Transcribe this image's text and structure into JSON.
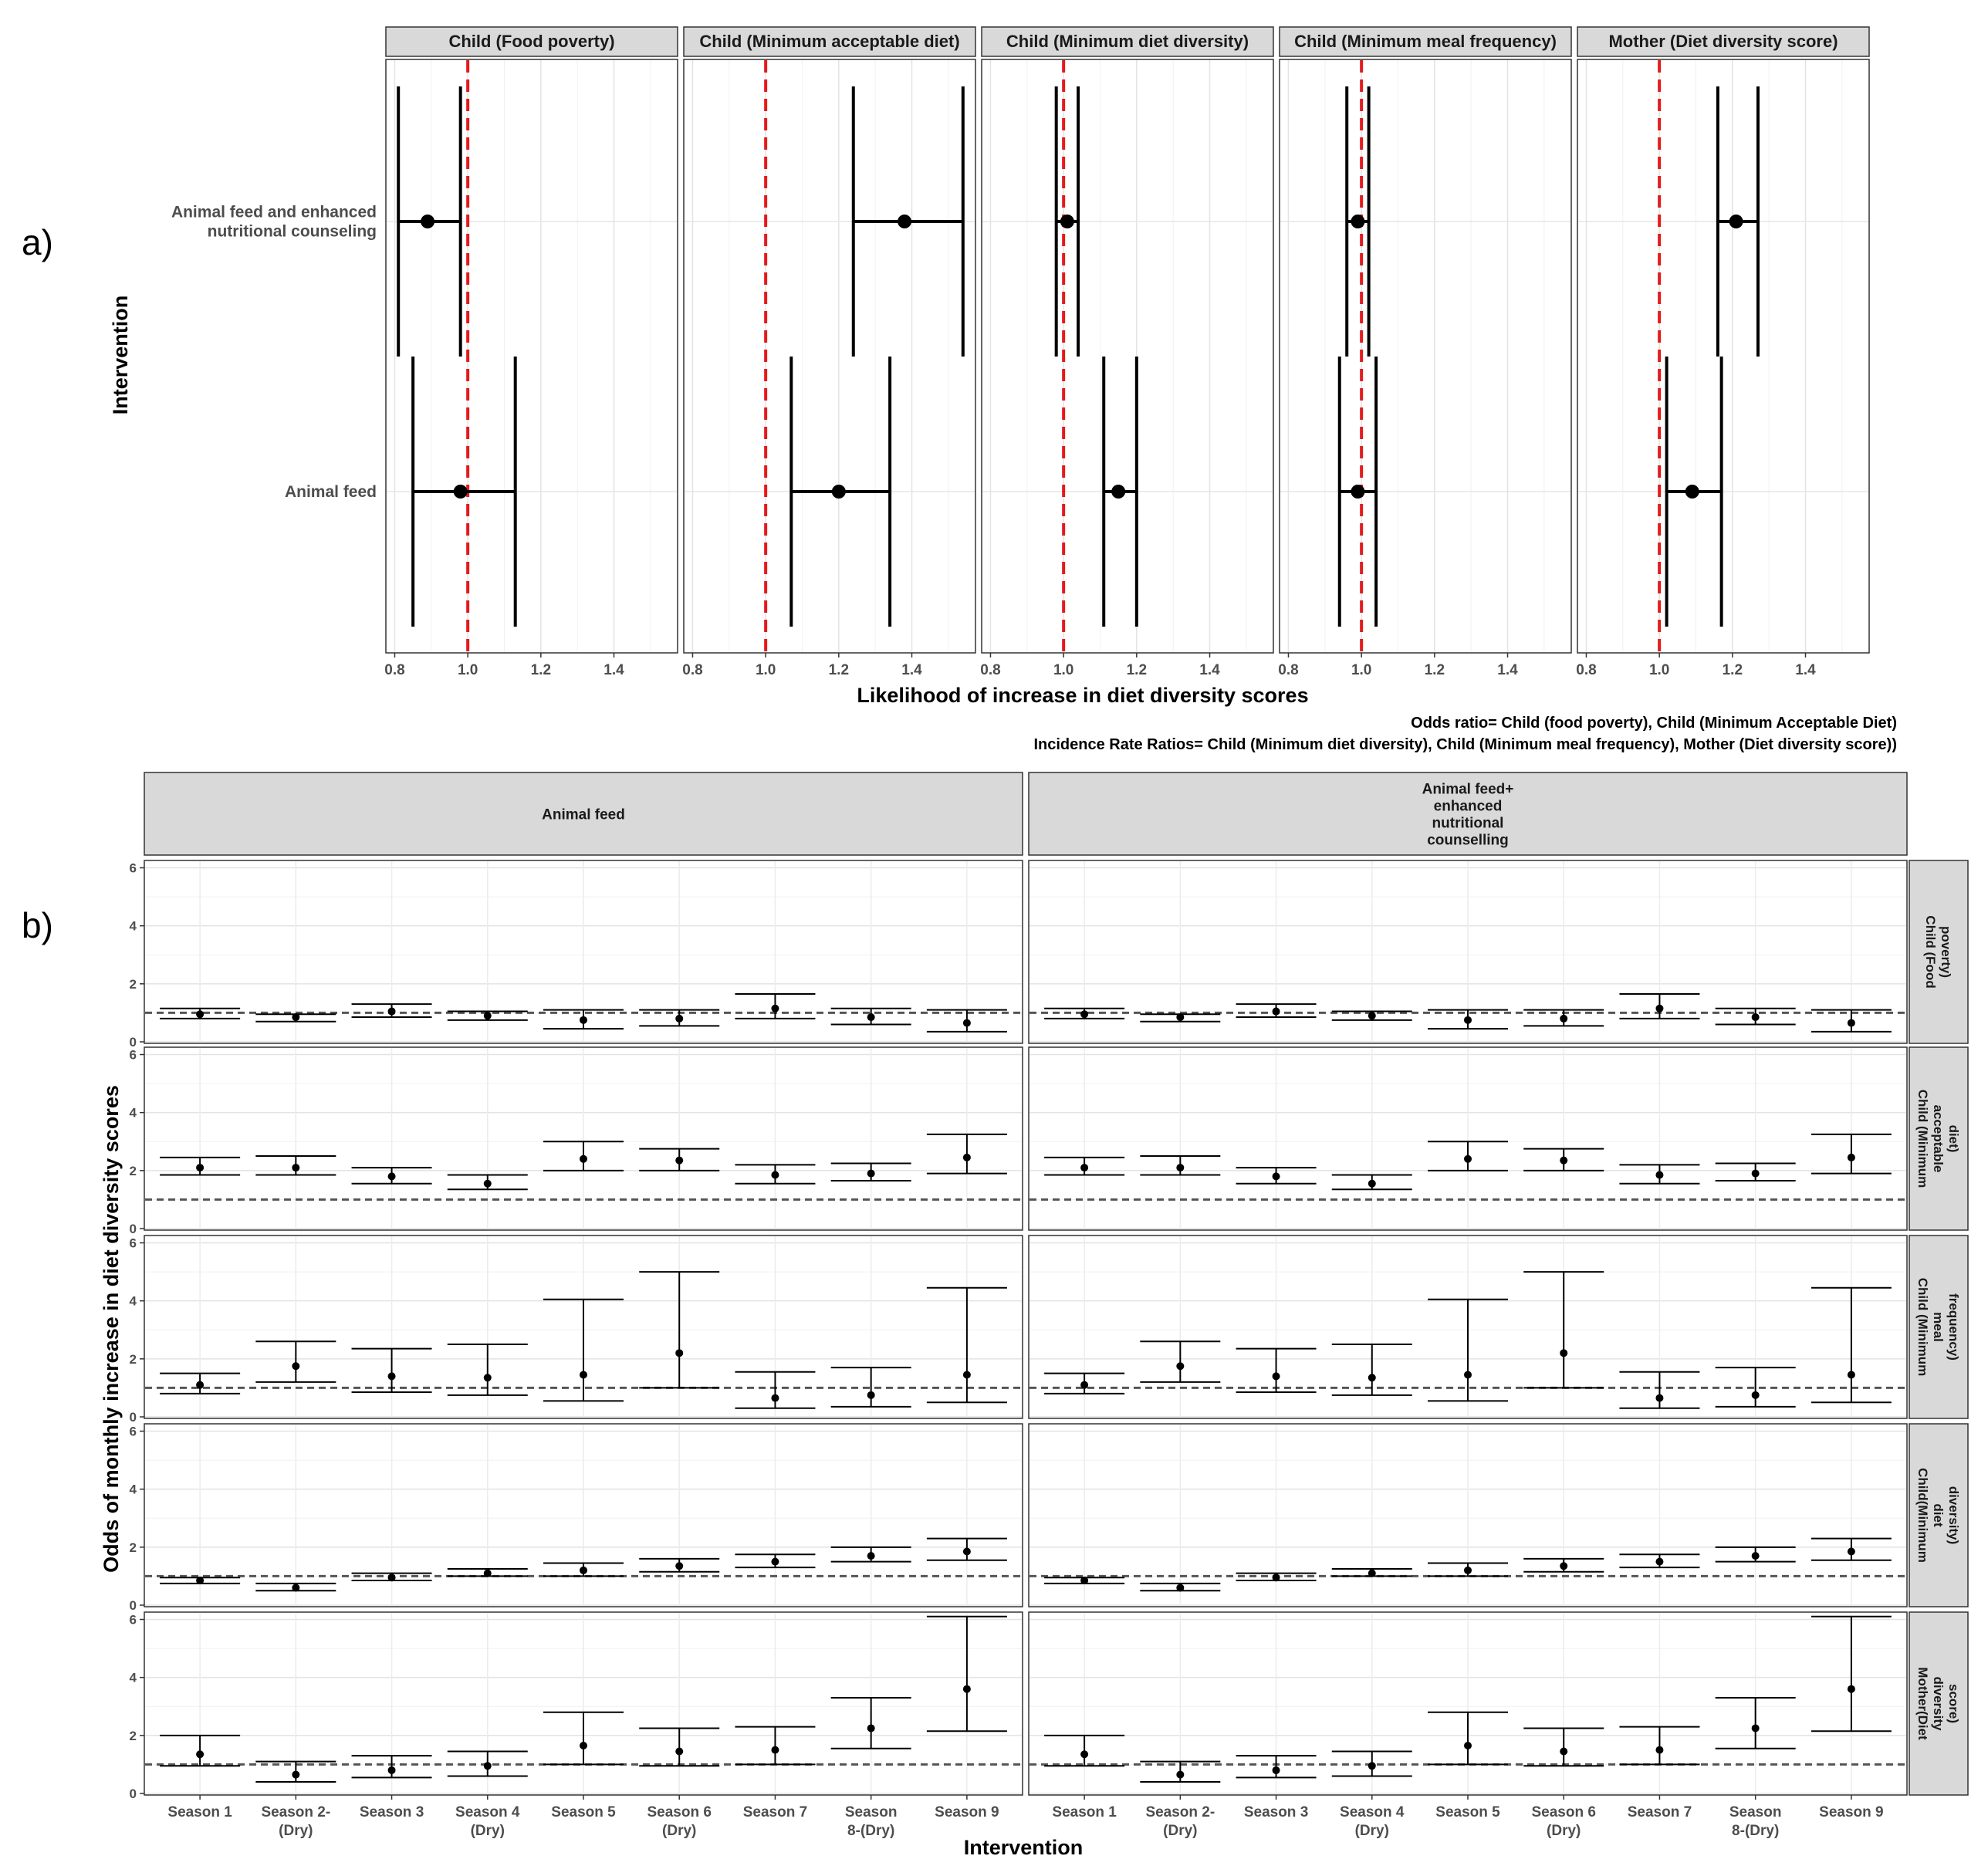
{
  "panel_labels": {
    "a": "a)",
    "b": "b)"
  },
  "colors": {
    "reference_line_a": "#e41a1c",
    "reference_line_b": "#555555",
    "strip_fill": "#d9d9d9",
    "point": "#000000"
  },
  "chart_data": [
    {
      "type": "forest",
      "id": "panel_a",
      "xlabel": "Likelihood of  increase in diet diversity scores",
      "ylabel": "Intervention",
      "xlim": [
        0.78,
        1.57
      ],
      "xticks": [
        "0.8",
        "1.0",
        "1.2",
        "1.4"
      ],
      "reference_line": 1.0,
      "notes": [
        "Odds ratio= Child (food poverty), Child (Minimum Acceptable Diet)",
        "Incidence Rate Ratios= Child (Minimum diet diversity), Child (Minimum meal frequency), Mother (Diet diversity score))"
      ],
      "categories": [
        "Animal feed and enhanced nutritional counseling",
        "Animal feed"
      ],
      "category_lines": [
        [
          "Animal feed and enhanced",
          "nutritional counseling"
        ],
        [
          "Animal feed"
        ]
      ],
      "facets": [
        {
          "name": "Child (Food poverty)",
          "estimates": [
            0.89,
            0.98
          ],
          "lower": [
            0.81,
            0.85
          ],
          "upper": [
            0.98,
            1.13
          ]
        },
        {
          "name": "Child (Minimum acceptable diet)",
          "estimates": [
            1.38,
            1.2
          ],
          "lower": [
            1.24,
            1.07
          ],
          "upper": [
            1.54,
            1.34
          ]
        },
        {
          "name": "Child (Minimum diet diversity)",
          "estimates": [
            1.01,
            1.15
          ],
          "lower": [
            0.98,
            1.11
          ],
          "upper": [
            1.04,
            1.2
          ]
        },
        {
          "name": "Child (Minimum meal frequency)",
          "estimates": [
            0.99,
            0.99
          ],
          "lower": [
            0.96,
            0.94
          ],
          "upper": [
            1.02,
            1.04
          ]
        },
        {
          "name": "Mother (Diet diversity score)",
          "estimates": [
            1.21,
            1.09
          ],
          "lower": [
            1.16,
            1.02
          ],
          "upper": [
            1.27,
            1.17
          ]
        }
      ]
    },
    {
      "type": "errorbar_grid",
      "id": "panel_b",
      "xlabel": "Intervention",
      "ylabel": "Odds of monthly increase in diet diversity scores",
      "ylim": [
        0,
        6.2
      ],
      "yticks": [
        "0",
        "2",
        "4",
        "6"
      ],
      "reference_line": 1.0,
      "categories": [
        "Season 1",
        "Season 2-(Dry)",
        "Season 3",
        "Season 4 (Dry)",
        "Season 5",
        "Season 6 (Dry)",
        "Season 7",
        "Season 8-(Dry)",
        "Season 9"
      ],
      "category_lines": [
        [
          "Season 1"
        ],
        [
          "Season 2-",
          "(Dry)"
        ],
        [
          "Season 3"
        ],
        [
          "Season 4",
          "(Dry)"
        ],
        [
          "Season 5"
        ],
        [
          "Season 6",
          "(Dry)"
        ],
        [
          "Season 7"
        ],
        [
          "Season",
          "8-(Dry)"
        ],
        [
          "Season 9"
        ]
      ],
      "columns": [
        {
          "name": "Animal feed",
          "lines": [
            "Animal feed"
          ]
        },
        {
          "name": "Animal feed+ enhanced nutritional counselling",
          "lines": [
            "Animal feed+",
            "enhanced",
            "nutritional",
            "counselling"
          ]
        }
      ],
      "rows": [
        {
          "name": "Child (Food poverty)",
          "lines": [
            "Child (Food",
            "poverty)"
          ],
          "estimates": [
            0.95,
            0.85,
            1.05,
            0.9,
            0.75,
            0.8,
            1.15,
            0.85,
            0.65
          ],
          "lower": [
            0.8,
            0.7,
            0.85,
            0.75,
            0.45,
            0.55,
            0.8,
            0.6,
            0.35
          ],
          "upper": [
            1.15,
            0.95,
            1.3,
            1.05,
            1.1,
            1.1,
            1.65,
            1.15,
            1.1
          ]
        },
        {
          "name": "Child (Minimum acceptable diet)",
          "lines": [
            "Child (Minimum",
            "acceptable",
            "diet)"
          ],
          "estimates": [
            2.1,
            2.1,
            1.8,
            1.55,
            2.4,
            2.35,
            1.85,
            1.9,
            2.45
          ],
          "lower": [
            1.85,
            1.85,
            1.55,
            1.35,
            2.0,
            2.0,
            1.55,
            1.65,
            1.9
          ],
          "upper": [
            2.45,
            2.5,
            2.1,
            1.85,
            3.0,
            2.75,
            2.2,
            2.25,
            3.25
          ]
        },
        {
          "name": "Child (Minimum meal frequency)",
          "lines": [
            "Child (Minimum",
            "meal",
            "frequency)"
          ],
          "estimates": [
            1.1,
            1.75,
            1.4,
            1.35,
            1.45,
            2.2,
            0.65,
            0.75,
            1.45
          ],
          "lower": [
            0.8,
            1.2,
            0.85,
            0.75,
            0.55,
            1.0,
            0.3,
            0.35,
            0.5
          ],
          "upper": [
            1.5,
            2.6,
            2.35,
            2.5,
            4.05,
            5.0,
            1.55,
            1.7,
            4.45
          ]
        },
        {
          "name": "Child(Minimum diet diversity)",
          "lines": [
            "Child(Minimum",
            "diet",
            "diversity)"
          ],
          "estimates": [
            0.85,
            0.6,
            0.95,
            1.1,
            1.2,
            1.35,
            1.5,
            1.7,
            1.85
          ],
          "lower": [
            0.75,
            0.5,
            0.85,
            1.0,
            1.0,
            1.15,
            1.3,
            1.5,
            1.55
          ],
          "upper": [
            0.95,
            0.75,
            1.1,
            1.25,
            1.45,
            1.6,
            1.75,
            2.0,
            2.3
          ]
        },
        {
          "name": "Mother(Diet diversity score)",
          "lines": [
            "Mother(Diet",
            "diversity",
            "score)"
          ],
          "estimates": [
            1.35,
            0.65,
            0.8,
            0.95,
            1.65,
            1.45,
            1.5,
            2.25,
            3.6
          ],
          "lower": [
            0.95,
            0.4,
            0.55,
            0.6,
            1.0,
            0.95,
            1.0,
            1.55,
            2.15
          ],
          "upper": [
            2.0,
            1.1,
            1.3,
            1.45,
            2.8,
            2.25,
            2.3,
            3.3,
            6.1
          ]
        }
      ]
    }
  ]
}
